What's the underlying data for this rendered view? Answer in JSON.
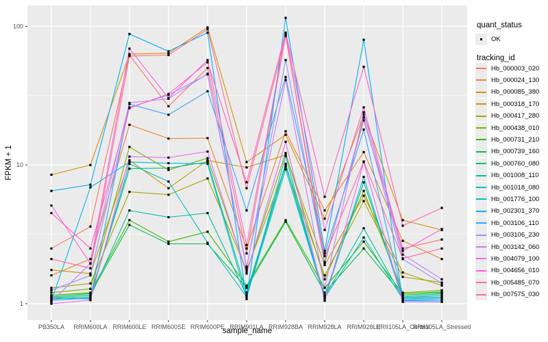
{
  "chart_data": {
    "type": "line",
    "title": "",
    "xlabel": "sample_name",
    "ylabel": "FPKM + 1",
    "y_scale": "log10",
    "y_ticks": [
      1,
      10,
      100
    ],
    "y_tick_labels": [
      "1",
      "10",
      "100"
    ],
    "y_minor_ticks": [
      3.1623,
      31.623
    ],
    "ylim": [
      0.93,
      140
    ],
    "grid": "white-on-gray",
    "legend_position": "right",
    "point_marker": "black-square",
    "categories": [
      "PB350LA",
      "RRIM600LA",
      "RRIM600LE",
      "RRIM600SE",
      "RRIM600PE",
      "RRIM901LA",
      "RRIM928BA",
      "RRIM928LA",
      "RRIM928LE",
      "RRII105LA_Control",
      "RRII105LA_Stressed"
    ],
    "series": [
      {
        "name": "Hb_000003_020",
        "color": "#F8766D",
        "values": [
          2.5,
          3.6,
          62,
          26.5,
          50,
          2.3,
          86,
          2.0,
          21,
          2.5,
          2.9
        ]
      },
      {
        "name": "Hb_000024_130",
        "color": "#EA8331",
        "values": [
          1.6,
          2.1,
          19.5,
          15.5,
          15.6,
          2.5,
          17.5,
          4.7,
          12.4,
          2.84,
          2.1
        ]
      },
      {
        "name": "Hb_000085_380",
        "color": "#D89000",
        "values": [
          8.5,
          10.0,
          63,
          64,
          98,
          10.5,
          16.5,
          4.1,
          23,
          4.0,
          3.4
        ]
      },
      {
        "name": "Hb_000318_170",
        "color": "#C09B00",
        "values": [
          1.75,
          1.65,
          10.8,
          6.8,
          10.8,
          9.6,
          11.8,
          1.9,
          6.0,
          1.68,
          1.35
        ]
      },
      {
        "name": "Hb_000417_280",
        "color": "#A3A500",
        "values": [
          1.3,
          1.4,
          6.4,
          6.1,
          8.0,
          1.75,
          9.7,
          1.6,
          5.5,
          1.56,
          1.42
        ]
      },
      {
        "name": "Hb_000438_010",
        "color": "#7CAE00",
        "values": [
          1.2,
          1.28,
          13.5,
          9.2,
          11.2,
          1.7,
          12.2,
          1.5,
          6.5,
          1.2,
          1.25
        ]
      },
      {
        "name": "Hb_000731_210",
        "color": "#39B600",
        "values": [
          1.15,
          1.2,
          4.0,
          2.8,
          3.3,
          1.35,
          4.0,
          1.3,
          2.8,
          1.18,
          1.22
        ]
      },
      {
        "name": "Hb_000739_160",
        "color": "#00BB4E",
        "values": [
          1.12,
          1.18,
          3.7,
          2.7,
          2.7,
          1.3,
          3.9,
          1.2,
          2.5,
          1.15,
          1.2
        ]
      },
      {
        "name": "Hb_000760_080",
        "color": "#00BF7D",
        "values": [
          1.1,
          1.15,
          9.4,
          9.5,
          10.5,
          1.2,
          10.2,
          1.15,
          7.5,
          1.12,
          1.18
        ]
      },
      {
        "name": "Hb_001008_110",
        "color": "#00C1A3",
        "values": [
          1.08,
          1.12,
          4.7,
          4.2,
          4.5,
          1.15,
          10.0,
          1.12,
          3.5,
          1.1,
          1.15
        ]
      },
      {
        "name": "Hb_001018_080",
        "color": "#00BFC4",
        "values": [
          1.06,
          1.1,
          10.2,
          7.6,
          2.75,
          1.12,
          9.3,
          1.1,
          3.0,
          1.08,
          1.1
        ]
      },
      {
        "name": "Hb_001776_100",
        "color": "#00BAE0",
        "values": [
          1.05,
          6.9,
          10.5,
          10.3,
          10.2,
          1.1,
          11.6,
          1.08,
          8.2,
          1.06,
          1.08
        ]
      },
      {
        "name": "Hb_002301_370",
        "color": "#00B0F6",
        "values": [
          6.5,
          7.2,
          88,
          66,
          90,
          1.08,
          115,
          2.4,
          80,
          1.05,
          1.05
        ]
      },
      {
        "name": "Hb_003106_110",
        "color": "#35A2FF",
        "values": [
          1.1,
          1.08,
          27.5,
          23,
          34,
          4.7,
          43,
          2.3,
          18,
          1.1,
          1.12
        ]
      },
      {
        "name": "Hb_003106_230",
        "color": "#9590FF",
        "values": [
          1.25,
          1.6,
          26,
          32,
          45,
          1.8,
          57,
          1.95,
          22,
          2.1,
          1.4
        ]
      },
      {
        "name": "Hb_003142_060",
        "color": "#C77CFF",
        "values": [
          1.03,
          1.95,
          28,
          30,
          45.5,
          1.85,
          41,
          1.3,
          24,
          2.26,
          1.5
        ]
      },
      {
        "name": "Hb_004079_100",
        "color": "#E76BF3",
        "values": [
          1.0,
          1.06,
          11.5,
          11.3,
          12.5,
          1.65,
          14.7,
          1.05,
          10.5,
          1.03,
          1.03
        ]
      },
      {
        "name": "Hb_004656_010",
        "color": "#FA62DB",
        "values": [
          5.1,
          1.95,
          69,
          30.4,
          57,
          2.65,
          88,
          3.4,
          26,
          2.4,
          3.45
        ]
      },
      {
        "name": "Hb_005485_070",
        "color": "#FF62BC",
        "values": [
          4.5,
          2.5,
          25.7,
          32.5,
          55,
          7.5,
          90,
          5.9,
          51,
          3.65,
          4.9
        ]
      },
      {
        "name": "Hb_007575_030",
        "color": "#FF6A98",
        "values": [
          2.1,
          1.8,
          61,
          62,
          95,
          6.8,
          85,
          2.2,
          10.6,
          2.12,
          2.5
        ]
      }
    ]
  },
  "axes": {
    "x_title": "sample_name",
    "y_title": "FPKM + 1"
  },
  "legend": {
    "quant_status_title": "quant_status",
    "quant_status_items": [
      {
        "label": "OK",
        "marker": "point"
      }
    ],
    "tracking_id_title": "tracking_id"
  },
  "colors": {
    "panel_bg": "#EBEBEB",
    "grid_major": "#FFFFFF",
    "grid_minor": "#FFFFFF",
    "tick_text": "#4D4D4D",
    "tick_mark": "#333333",
    "point": "#000000",
    "legend_key_bg": "#ECECEC"
  }
}
